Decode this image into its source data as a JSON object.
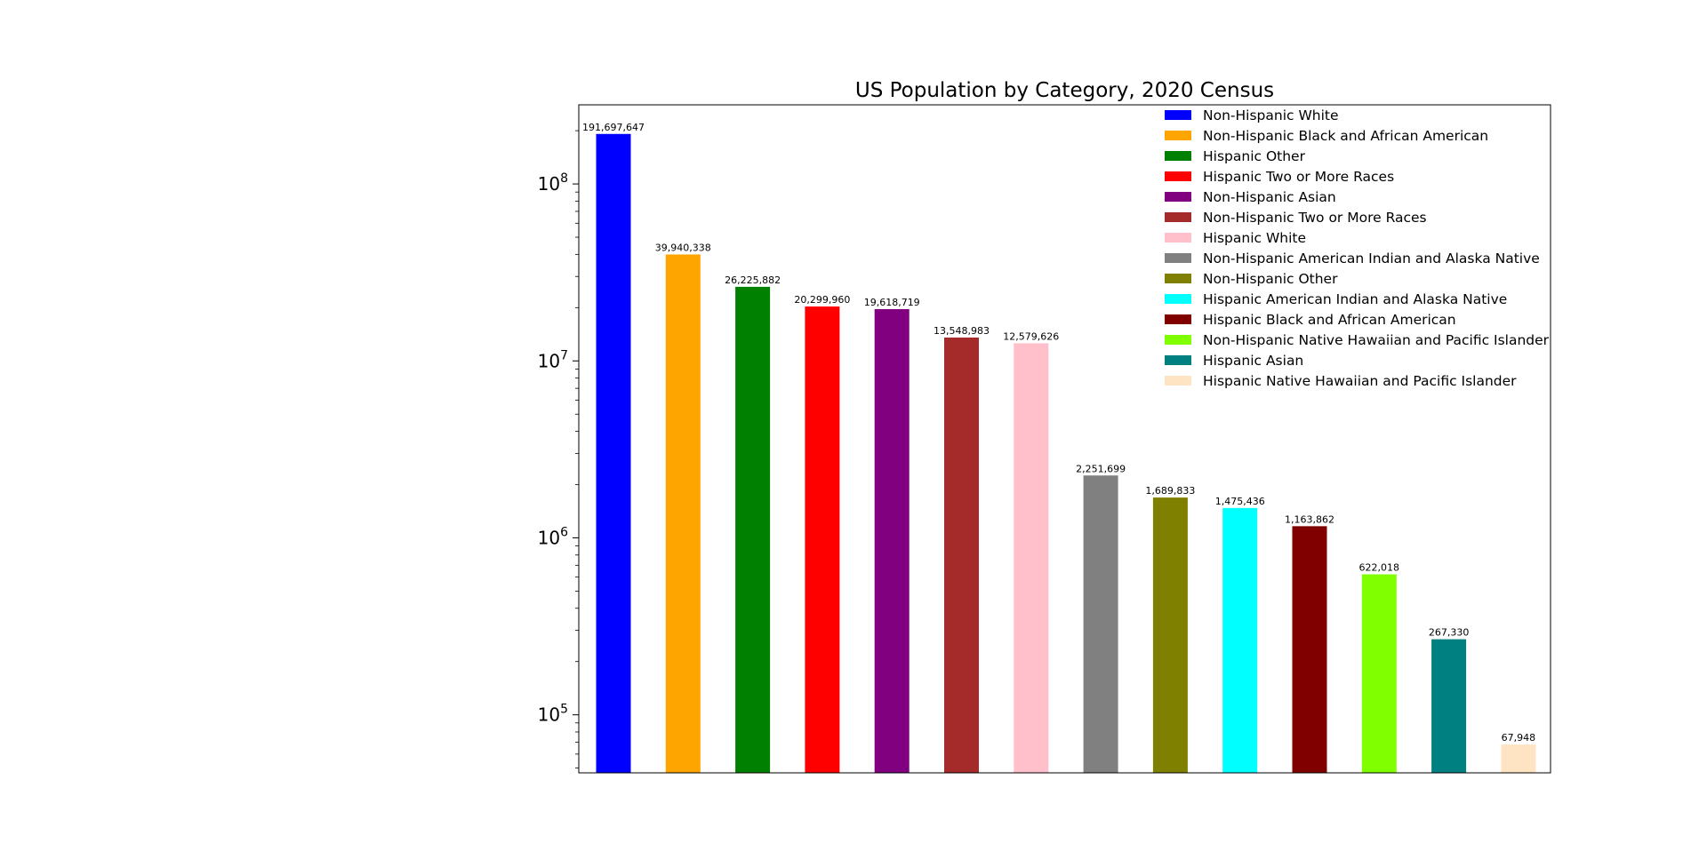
{
  "chart_data": {
    "type": "bar",
    "title": "US Population by Category, 2020 Census",
    "xlabel": "",
    "ylabel": "",
    "yscale": "log",
    "ylim": [
      47000,
      280000000
    ],
    "grid": false,
    "legend_placement": "top-right",
    "yticks": [
      {
        "value": 100000,
        "base": "10",
        "exp": "5"
      },
      {
        "value": 1000000,
        "base": "10",
        "exp": "6"
      },
      {
        "value": 10000000,
        "base": "10",
        "exp": "7"
      },
      {
        "value": 100000000,
        "base": "10",
        "exp": "8"
      }
    ],
    "bars": [
      {
        "name": "Non-Hispanic White",
        "value": 191697647,
        "label": "191,697,647",
        "color": "#0000ff"
      },
      {
        "name": "Non-Hispanic Black and African American",
        "value": 39940338,
        "label": "39,940,338",
        "color": "#ffa500"
      },
      {
        "name": "Hispanic Other",
        "value": 26225882,
        "label": "26,225,882",
        "color": "#008000"
      },
      {
        "name": "Hispanic Two or More Races",
        "value": 20299960,
        "label": "20,299,960",
        "color": "#ff0000"
      },
      {
        "name": "Non-Hispanic Asian",
        "value": 19618719,
        "label": "19,618,719",
        "color": "#800080"
      },
      {
        "name": "Non-Hispanic Two or More Races",
        "value": 13548983,
        "label": "13,548,983",
        "color": "#a52a2a"
      },
      {
        "name": "Hispanic White",
        "value": 12579626,
        "label": "12,579,626",
        "color": "#ffc0cb"
      },
      {
        "name": "Non-Hispanic American Indian and Alaska Native",
        "value": 2251699,
        "label": "2,251,699",
        "color": "#808080"
      },
      {
        "name": "Non-Hispanic Other",
        "value": 1689833,
        "label": "1,689,833",
        "color": "#808000"
      },
      {
        "name": "Hispanic American Indian and Alaska Native",
        "value": 1475436,
        "label": "1,475,436",
        "color": "#00ffff"
      },
      {
        "name": "Hispanic Black and African American",
        "value": 1163862,
        "label": "1,163,862",
        "color": "#800000"
      },
      {
        "name": "Non-Hispanic Native Hawaiian and Pacific Islander",
        "value": 622018,
        "label": "622,018",
        "color": "#7fff00"
      },
      {
        "name": "Hispanic Asian",
        "value": 267330,
        "label": "267,330",
        "color": "#008080"
      },
      {
        "name": "Hispanic Native Hawaiian and Pacific Islander",
        "value": 67948,
        "label": "67,948",
        "color": "#ffe4c4"
      }
    ]
  }
}
